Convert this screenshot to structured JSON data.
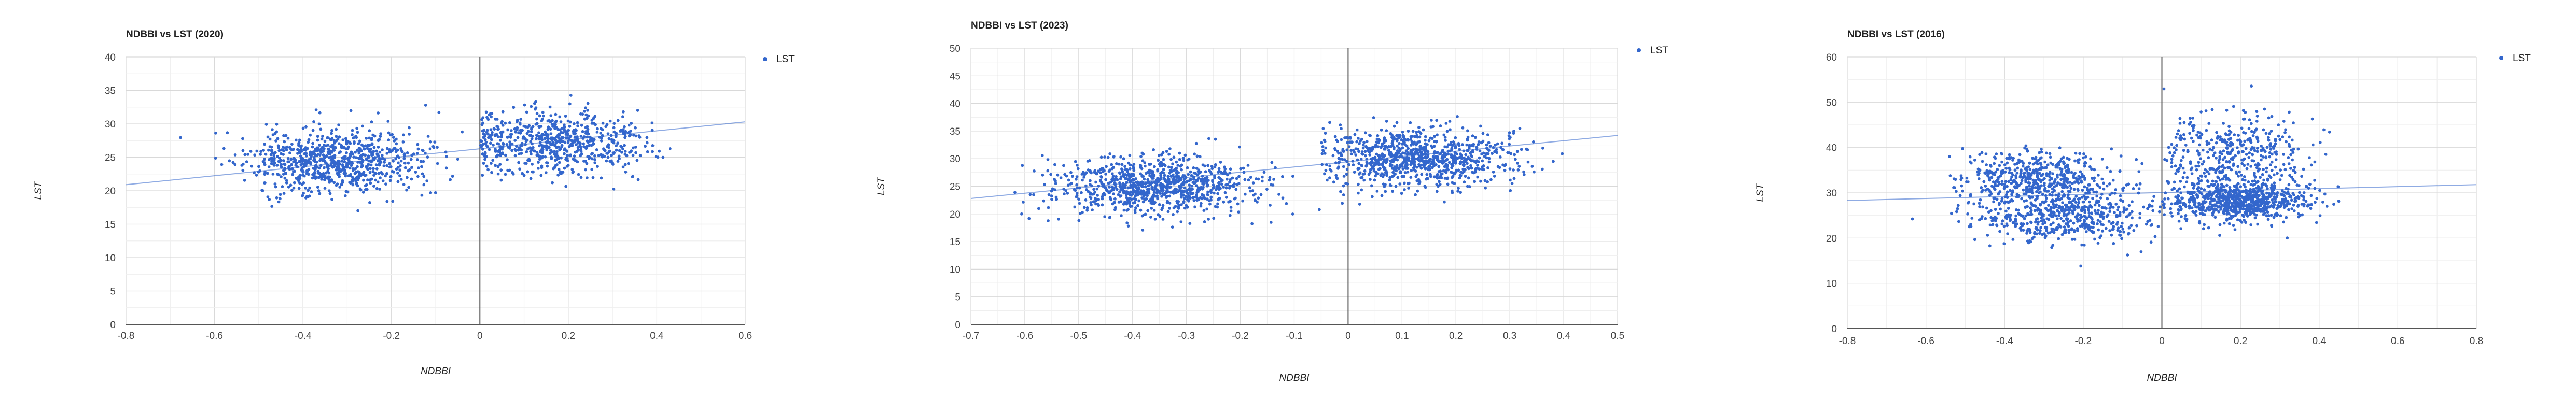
{
  "chart_data": [
    {
      "type": "scatter",
      "title": "NDBBI vs LST (2020)",
      "xlabel": "NDBBI",
      "ylabel": "LST",
      "xlim": [
        -0.8,
        0.6
      ],
      "ylim": [
        0,
        40
      ],
      "xticks": [
        "-0.8",
        "-0.6",
        "-0.4",
        "-0.2",
        "0",
        "0.2",
        "0.4",
        "0.6"
      ],
      "yticks": [
        "0",
        "5",
        "10",
        "15",
        "20",
        "25",
        "30",
        "35",
        "40"
      ],
      "series": [
        {
          "name": "LST",
          "color": "#3366cc",
          "n_points": 1500
        }
      ],
      "trendline": {
        "x": [
          -0.8,
          0.6
        ],
        "y": [
          20.9,
          30.3
        ]
      },
      "clusters": [
        {
          "x_mean": -0.33,
          "x_sd": 0.1,
          "y_mean": 24.5,
          "y_sd": 2.4,
          "x_min": -0.78,
          "x_max": 0.0,
          "weight": 0.55
        },
        {
          "x_mean": 0.17,
          "x_sd": 0.11,
          "y_mean": 27.3,
          "y_sd": 2.4,
          "x_min": 0.0,
          "x_max": 0.47,
          "weight": 0.45
        }
      ],
      "grid": true,
      "legend_position": "right"
    },
    {
      "type": "scatter",
      "title": "NDBBI vs LST (2023)",
      "xlabel": "NDBBI",
      "ylabel": "LST",
      "xlim": [
        -0.7,
        0.5
      ],
      "ylim": [
        0,
        50
      ],
      "xticks": [
        "-0.7",
        "-0.6",
        "-0.5",
        "-0.4",
        "-0.3",
        "-0.2",
        "-0.1",
        "0",
        "0.1",
        "0.2",
        "0.3",
        "0.4",
        "0.5"
      ],
      "yticks": [
        "0",
        "5",
        "10",
        "15",
        "20",
        "25",
        "30",
        "35",
        "40",
        "45",
        "50"
      ],
      "series": [
        {
          "name": "LST",
          "color": "#3366cc",
          "n_points": 1800
        }
      ],
      "trendline": {
        "x": [
          -0.7,
          0.5
        ],
        "y": [
          22.8,
          34.2
        ]
      },
      "clusters": [
        {
          "x_mean": -0.36,
          "x_sd": 0.09,
          "y_mean": 25.0,
          "y_sd": 2.6,
          "x_min": -0.62,
          "x_max": -0.02,
          "weight": 0.5
        },
        {
          "x_mean": 0.13,
          "x_sd": 0.09,
          "y_mean": 30.2,
          "y_sd": 2.8,
          "x_min": -0.05,
          "x_max": 0.49,
          "weight": 0.5
        }
      ],
      "grid": true,
      "legend_position": "right"
    },
    {
      "type": "scatter",
      "title": "NDBBI vs LST (2016)",
      "xlabel": "NDBBI",
      "ylabel": "LST",
      "xlim": [
        -0.8,
        0.8
      ],
      "ylim": [
        0,
        60
      ],
      "xticks": [
        "-0.8",
        "-0.6",
        "-0.4",
        "-0.2",
        "0",
        "0.2",
        "0.4",
        "0.6",
        "0.8"
      ],
      "yticks": [
        "0",
        "10",
        "20",
        "30",
        "40",
        "50",
        "60"
      ],
      "series": [
        {
          "name": "LST",
          "color": "#3366cc",
          "n_points": 2200
        }
      ],
      "trendline": {
        "x": [
          -0.8,
          0.8
        ],
        "y": [
          28.3,
          31.8
        ]
      },
      "clusters": [
        {
          "x_mean": -0.32,
          "x_sd": 0.09,
          "y_mean": 33.5,
          "y_sd": 3.0,
          "x_min": -0.55,
          "x_max": -0.05,
          "weight": 0.22
        },
        {
          "x_mean": -0.25,
          "x_sd": 0.12,
          "y_mean": 25.0,
          "y_sd": 3.0,
          "x_min": -0.75,
          "x_max": 0.0,
          "weight": 0.25
        },
        {
          "x_mean": 0.2,
          "x_sd": 0.09,
          "y_mean": 28.0,
          "y_sd": 2.2,
          "x_min": 0.0,
          "x_max": 0.48,
          "weight": 0.33
        },
        {
          "x_mean": 0.18,
          "x_sd": 0.1,
          "y_mean": 38.0,
          "y_sd": 5.0,
          "x_min": 0.0,
          "x_max": 0.45,
          "weight": 0.2
        }
      ],
      "grid": true,
      "legend_position": "right"
    }
  ]
}
